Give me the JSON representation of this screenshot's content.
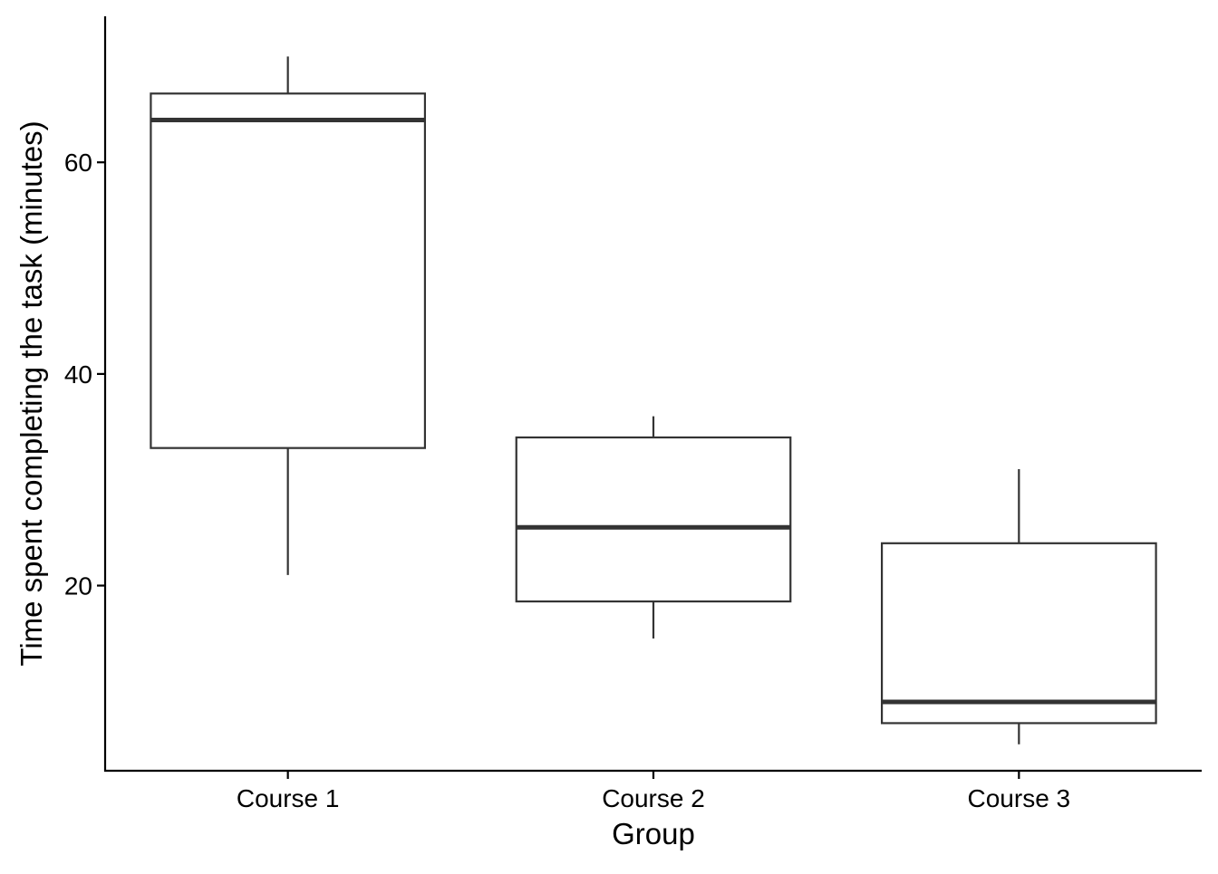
{
  "chart_data": {
    "type": "box",
    "title": "",
    "xlabel": "Group",
    "ylabel": "Time spent completing the task (minutes)",
    "categories": [
      "Course 1",
      "Course 2",
      "Course 3"
    ],
    "yticks": [
      20,
      40,
      60
    ],
    "ylim": [
      2.5,
      73.8
    ],
    "grid": false,
    "legend": false,
    "boxes": [
      {
        "category": "Course 1",
        "whisker_low": 21.0,
        "q1": 33.0,
        "median": 64.0,
        "q3": 66.5,
        "whisker_high": 70.0
      },
      {
        "category": "Course 2",
        "whisker_low": 15.0,
        "q1": 18.5,
        "median": 25.5,
        "q3": 34.0,
        "whisker_high": 36.0
      },
      {
        "category": "Course 3",
        "whisker_low": 5.0,
        "q1": 7.0,
        "median": 9.0,
        "q3": 24.0,
        "whisker_high": 31.0
      }
    ],
    "colors": {
      "axis": "#000000",
      "box_outline": "#333333",
      "box_fill": "#ffffff",
      "median": "#333333",
      "whisker": "#333333"
    }
  }
}
